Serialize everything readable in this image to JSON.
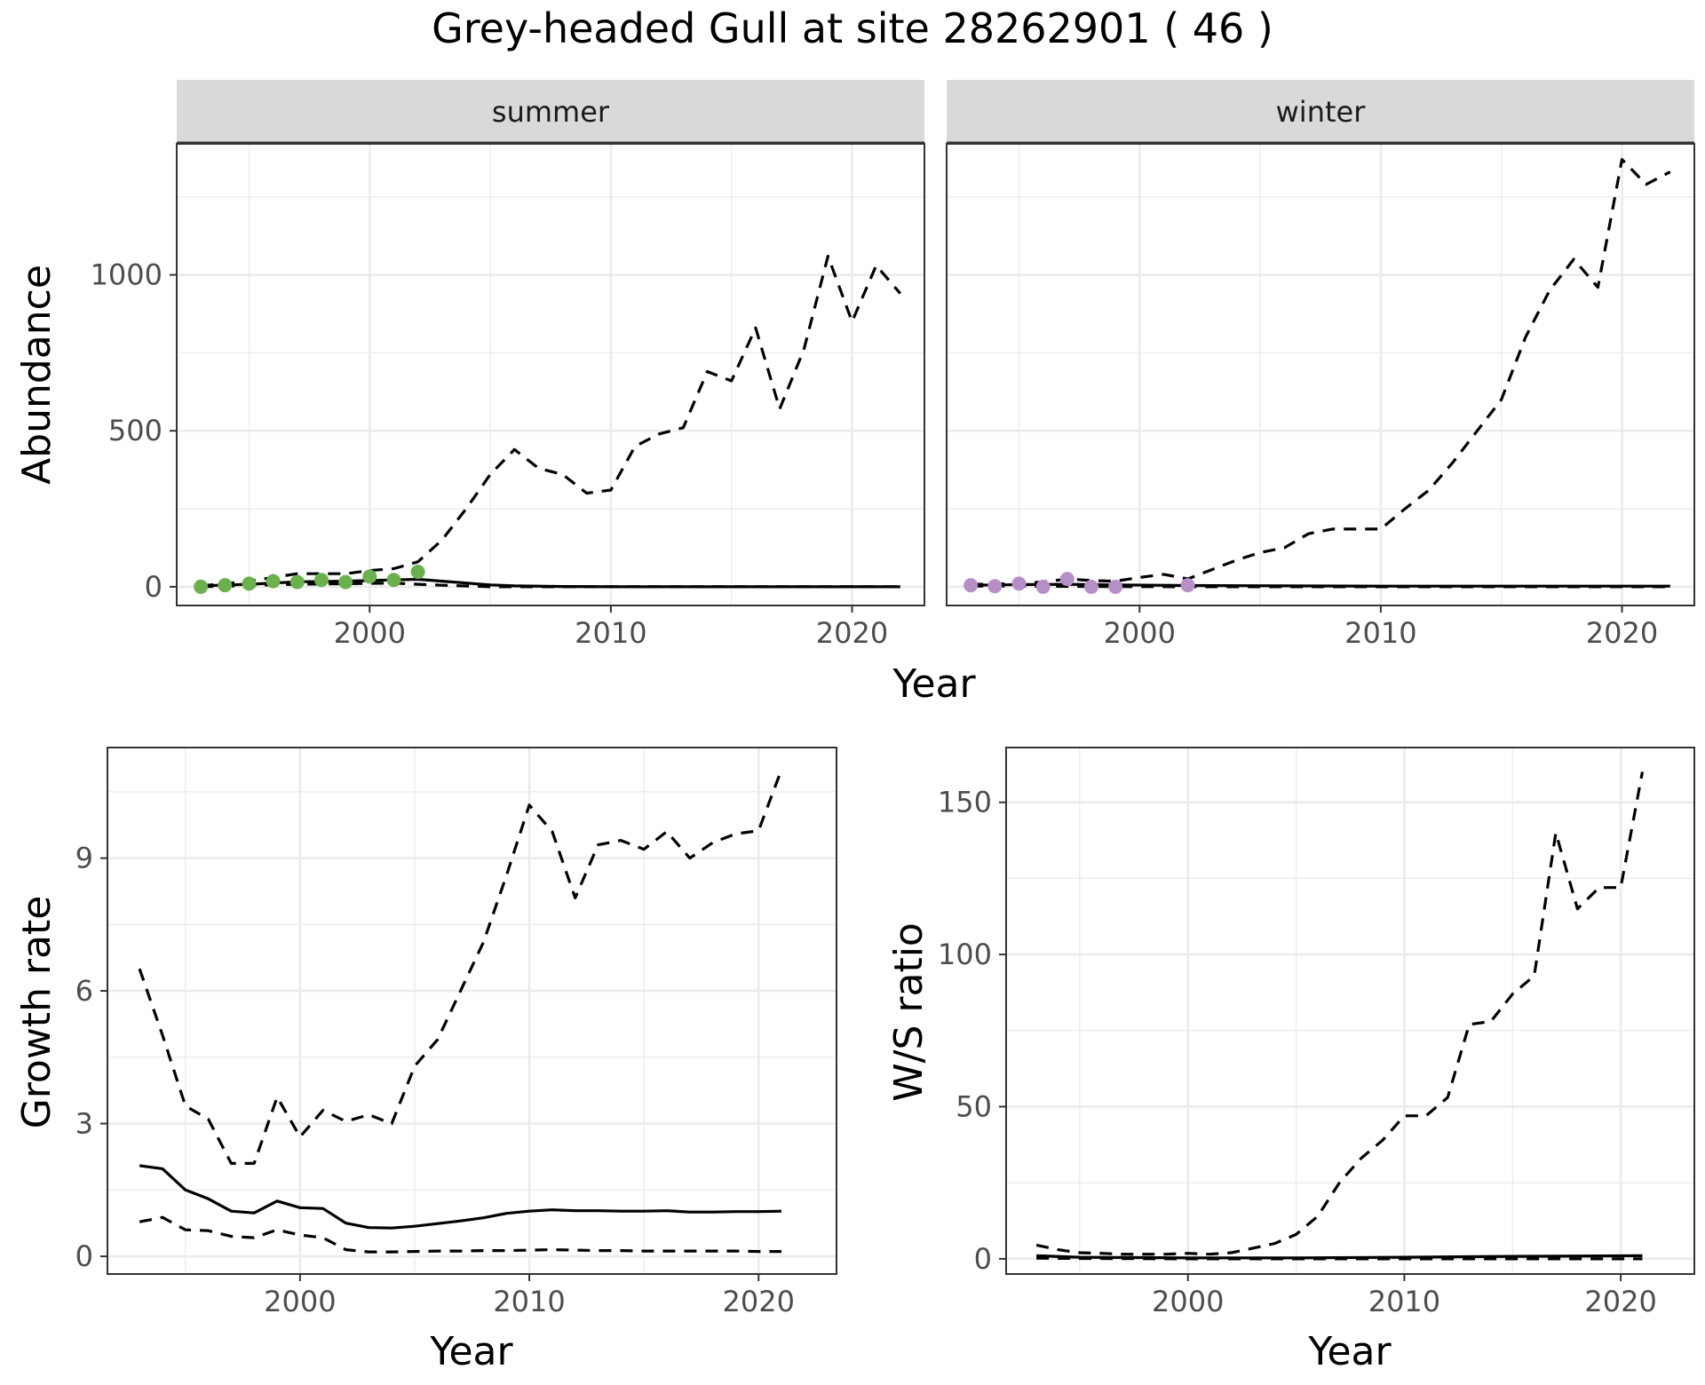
{
  "figure": {
    "title": "Grey-headed Gull at site 28262901 ( 46 )"
  },
  "chart_data": [
    {
      "id": "abundance",
      "type": "line",
      "facets": [
        "summer",
        "winter"
      ],
      "xlabel": "Year",
      "ylabel": "Abundance",
      "xlim": [
        1992,
        2023
      ],
      "ylim": [
        -60,
        1420
      ],
      "xticks": [
        2000,
        2010,
        2020
      ],
      "yticks": [
        0,
        500,
        1000
      ],
      "panels": [
        {
          "facet": "summer",
          "point_color": "#6ab04c",
          "points": {
            "x": [
              1993,
              1994,
              1995,
              1996,
              1997,
              1998,
              1999,
              2000,
              2001,
              2002
            ],
            "y": [
              0,
              5,
              10,
              18,
              15,
              22,
              15,
              33,
              22,
              48
            ]
          },
          "series": [
            {
              "name": "estimate",
              "style": "solid",
              "x": [
                1993,
                1995,
                1997,
                1999,
                2000,
                2001,
                2002,
                2003,
                2004,
                2005,
                2006,
                2008,
                2010,
                2015,
                2020,
                2022
              ],
              "y": [
                3,
                8,
                16,
                18,
                20,
                22,
                24,
                18,
                12,
                6,
                3,
                1,
                0,
                0,
                0,
                0
              ]
            },
            {
              "name": "upper",
              "style": "dashed",
              "x": [
                1993,
                1994,
                1995,
                1996,
                1997,
                1998,
                1999,
                2000,
                2001,
                2002,
                2003,
                2004,
                2005,
                2006,
                2007,
                2008,
                2009,
                2010,
                2011,
                2012,
                2013,
                2014,
                2015,
                2016,
                2017,
                2018,
                2019,
                2020,
                2021,
                2022
              ],
              "y": [
                3,
                10,
                18,
                30,
                42,
                42,
                42,
                52,
                58,
                80,
                150,
                250,
                360,
                440,
                380,
                360,
                300,
                310,
                450,
                490,
                510,
                690,
                660,
                830,
                570,
                760,
                1060,
                850,
                1030,
                940
              ]
            },
            {
              "name": "lower",
              "style": "dashed",
              "x": [
                1993,
                1995,
                1997,
                1999,
                2000,
                2001,
                2002,
                2003,
                2005,
                2010,
                2022
              ],
              "y": [
                0,
                4,
                8,
                10,
                11,
                12,
                8,
                5,
                0,
                0,
                0
              ]
            }
          ]
        },
        {
          "facet": "winter",
          "point_color": "#b68fc9",
          "points": {
            "x": [
              1993,
              1994,
              1995,
              1996,
              1997,
              1998,
              1999,
              2002
            ],
            "y": [
              5,
              2,
              10,
              0,
              25,
              0,
              0,
              5
            ]
          },
          "series": [
            {
              "name": "estimate",
              "style": "solid",
              "x": [
                1993,
                1995,
                1997,
                1999,
                2002,
                2010,
                2022
              ],
              "y": [
                5,
                7,
                8,
                6,
                4,
                2,
                2
              ]
            },
            {
              "name": "upper",
              "style": "dashed",
              "x": [
                1993,
                1994,
                1995,
                1996,
                1997,
                1998,
                1999,
                2000,
                2001,
                2002,
                2003,
                2004,
                2005,
                2006,
                2007,
                2008,
                2009,
                2010,
                2011,
                2012,
                2013,
                2014,
                2015,
                2016,
                2017,
                2018,
                2019,
                2020,
                2021,
                2022
              ],
              "y": [
                8,
                8,
                12,
                15,
                25,
                20,
                18,
                30,
                40,
                25,
                55,
                85,
                110,
                125,
                170,
                185,
                185,
                185,
                250,
                310,
                400,
                500,
                600,
                800,
                950,
                1050,
                960,
                1370,
                1290,
                1330
              ]
            },
            {
              "name": "lower",
              "style": "dashed",
              "x": [
                1993,
                1995,
                1998,
                2002,
                2010,
                2022
              ],
              "y": [
                2,
                2,
                1,
                0,
                0,
                0
              ]
            }
          ]
        }
      ]
    },
    {
      "id": "growth",
      "type": "line",
      "xlabel": "Year",
      "ylabel": "Growth rate",
      "xlim": [
        1991.6,
        2023.4
      ],
      "ylim": [
        -0.4,
        11.5
      ],
      "xticks": [
        2000,
        2010,
        2020
      ],
      "yticks": [
        0,
        3,
        6,
        9
      ],
      "series": [
        {
          "name": "estimate",
          "style": "solid",
          "x": [
            1993,
            1994,
            1995,
            1996,
            1997,
            1998,
            1999,
            2000,
            2001,
            2002,
            2003,
            2004,
            2005,
            2006,
            2007,
            2008,
            2009,
            2010,
            2011,
            2012,
            2013,
            2014,
            2015,
            2016,
            2017,
            2018,
            2019,
            2020,
            2021
          ],
          "y": [
            2.05,
            1.98,
            1.5,
            1.3,
            1.02,
            0.98,
            1.25,
            1.1,
            1.08,
            0.75,
            0.65,
            0.64,
            0.68,
            0.74,
            0.8,
            0.87,
            0.97,
            1.02,
            1.05,
            1.03,
            1.03,
            1.02,
            1.02,
            1.03,
            1.0,
            1.0,
            1.01,
            1.01,
            1.02
          ]
        },
        {
          "name": "upper",
          "style": "dashed",
          "x": [
            1993,
            1994,
            1995,
            1996,
            1997,
            1998,
            1999,
            2000,
            2001,
            2002,
            2003,
            2004,
            2005,
            2006,
            2007,
            2008,
            2009,
            2010,
            2011,
            2012,
            2013,
            2014,
            2015,
            2016,
            2017,
            2018,
            2019,
            2020,
            2021
          ],
          "y": [
            6.5,
            5.0,
            3.4,
            3.1,
            2.1,
            2.1,
            3.6,
            2.7,
            3.3,
            3.05,
            3.2,
            3.0,
            4.3,
            4.9,
            6.0,
            7.1,
            8.6,
            10.2,
            9.6,
            8.1,
            9.3,
            9.4,
            9.2,
            9.6,
            9.0,
            9.35,
            9.55,
            9.62,
            11.0
          ]
        },
        {
          "name": "lower",
          "style": "dashed",
          "x": [
            1993,
            1994,
            1995,
            1996,
            1997,
            1998,
            1999,
            2000,
            2001,
            2002,
            2003,
            2004,
            2005,
            2006,
            2007,
            2008,
            2009,
            2010,
            2011,
            2012,
            2013,
            2014,
            2015,
            2016,
            2017,
            2018,
            2019,
            2020,
            2021
          ],
          "y": [
            0.78,
            0.88,
            0.6,
            0.58,
            0.45,
            0.42,
            0.6,
            0.48,
            0.42,
            0.15,
            0.1,
            0.1,
            0.11,
            0.12,
            0.12,
            0.13,
            0.13,
            0.14,
            0.15,
            0.14,
            0.13,
            0.13,
            0.12,
            0.12,
            0.12,
            0.12,
            0.12,
            0.11,
            0.11
          ]
        }
      ]
    },
    {
      "id": "ws_ratio",
      "type": "line",
      "xlabel": "Year",
      "ylabel": "W/S ratio",
      "xlim": [
        1991.6,
        2023.4
      ],
      "ylim": [
        -5,
        168
      ],
      "xticks": [
        2000,
        2010,
        2020
      ],
      "yticks": [
        0,
        50,
        100,
        150
      ],
      "series": [
        {
          "name": "estimate",
          "style": "solid",
          "x": [
            1993,
            1995,
            2000,
            2005,
            2010,
            2015,
            2021
          ],
          "y": [
            1,
            0.5,
            0.3,
            0.3,
            0.5,
            0.8,
            1
          ]
        },
        {
          "name": "upper",
          "style": "dashed",
          "x": [
            1993,
            1994,
            1995,
            1996,
            1997,
            1998,
            1999,
            2000,
            2001,
            2002,
            2003,
            2004,
            2005,
            2006,
            2007,
            2008,
            2009,
            2010,
            2011,
            2012,
            2013,
            2014,
            2015,
            2016,
            2017,
            2018,
            2019,
            2020,
            2021
          ],
          "y": [
            4.5,
            3.0,
            2.0,
            1.8,
            1.5,
            1.5,
            1.5,
            1.8,
            1.5,
            2.0,
            3.5,
            5.0,
            8.0,
            14.0,
            25.0,
            33.0,
            39.0,
            47.0,
            47.0,
            53.0,
            77.0,
            78.0,
            87.0,
            93.0,
            140.0,
            115.0,
            122.0,
            122.0,
            160.0
          ]
        },
        {
          "name": "lower",
          "style": "dashed",
          "x": [
            1993,
            1995,
            2000,
            2005,
            2010,
            2015,
            2021
          ],
          "y": [
            0.2,
            0.1,
            0,
            0,
            0,
            0,
            0
          ]
        }
      ]
    }
  ]
}
